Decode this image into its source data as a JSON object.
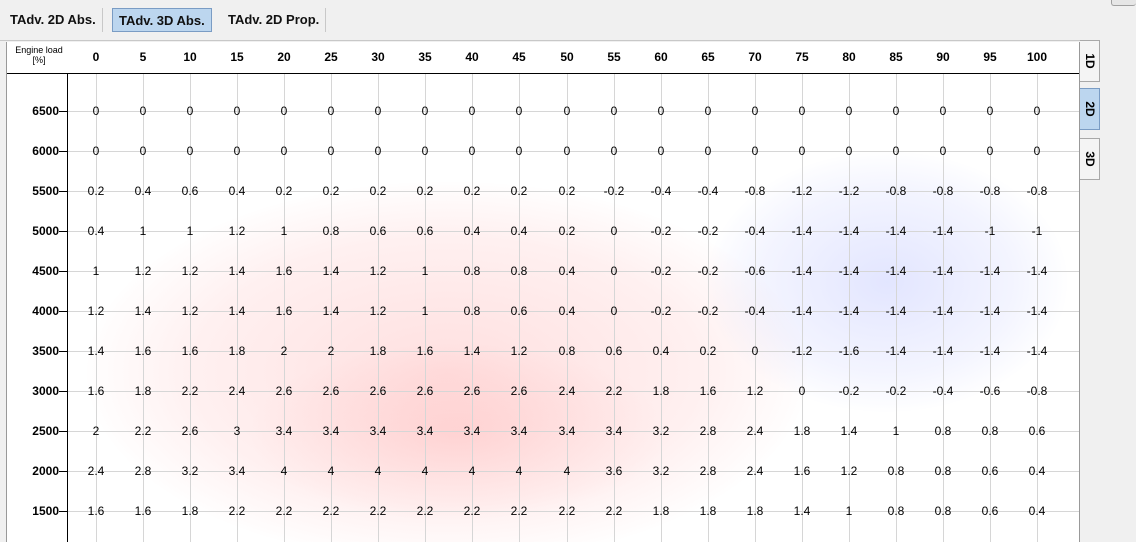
{
  "tabs": [
    {
      "label": "TAdv. 2D Abs.",
      "active": false
    },
    {
      "label": "TAdv. 3D Abs.",
      "active": true
    },
    {
      "label": "TAdv. 2D Prop.",
      "active": false
    }
  ],
  "side_tabs": [
    {
      "label": "1D",
      "active": false
    },
    {
      "label": "2D",
      "active": true
    },
    {
      "label": "3D",
      "active": false
    }
  ],
  "table": {
    "corner_label_line1": "Engine load",
    "corner_label_line2": "[%]",
    "columns": [
      "0",
      "5",
      "10",
      "15",
      "20",
      "25",
      "30",
      "35",
      "40",
      "45",
      "50",
      "55",
      "60",
      "65",
      "70",
      "75",
      "80",
      "85",
      "90",
      "95",
      "100"
    ],
    "rows": [
      {
        "label": "6500",
        "values": [
          "0",
          "0",
          "0",
          "0",
          "0",
          "0",
          "0",
          "0",
          "0",
          "0",
          "0",
          "0",
          "0",
          "0",
          "0",
          "0",
          "0",
          "0",
          "0",
          "0",
          "0"
        ]
      },
      {
        "label": "6000",
        "values": [
          "0",
          "0",
          "0",
          "0",
          "0",
          "0",
          "0",
          "0",
          "0",
          "0",
          "0",
          "0",
          "0",
          "0",
          "0",
          "0",
          "0",
          "0",
          "0",
          "0",
          "0"
        ]
      },
      {
        "label": "5500",
        "values": [
          "0.2",
          "0.4",
          "0.6",
          "0.4",
          "0.2",
          "0.2",
          "0.2",
          "0.2",
          "0.2",
          "0.2",
          "0.2",
          "-0.2",
          "-0.4",
          "-0.4",
          "-0.8",
          "-1.2",
          "-1.2",
          "-0.8",
          "-0.8",
          "-0.8",
          "-0.8"
        ]
      },
      {
        "label": "5000",
        "values": [
          "0.4",
          "1",
          "1",
          "1.2",
          "1",
          "0.8",
          "0.6",
          "0.6",
          "0.4",
          "0.4",
          "0.2",
          "0",
          "-0.2",
          "-0.2",
          "-0.4",
          "-1.4",
          "-1.4",
          "-1.4",
          "-1.4",
          "-1",
          "-1"
        ]
      },
      {
        "label": "4500",
        "values": [
          "1",
          "1.2",
          "1.2",
          "1.4",
          "1.6",
          "1.4",
          "1.2",
          "1",
          "0.8",
          "0.8",
          "0.4",
          "0",
          "-0.2",
          "-0.2",
          "-0.6",
          "-1.4",
          "-1.4",
          "-1.4",
          "-1.4",
          "-1.4",
          "-1.4"
        ]
      },
      {
        "label": "4000",
        "values": [
          "1.2",
          "1.4",
          "1.2",
          "1.4",
          "1.6",
          "1.4",
          "1.2",
          "1",
          "0.8",
          "0.6",
          "0.4",
          "0",
          "-0.2",
          "-0.2",
          "-0.4",
          "-1.4",
          "-1.4",
          "-1.4",
          "-1.4",
          "-1.4",
          "-1.4"
        ]
      },
      {
        "label": "3500",
        "values": [
          "1.4",
          "1.6",
          "1.6",
          "1.8",
          "2",
          "2",
          "1.8",
          "1.6",
          "1.4",
          "1.2",
          "0.8",
          "0.6",
          "0.4",
          "0.2",
          "0",
          "-1.2",
          "-1.6",
          "-1.4",
          "-1.4",
          "-1.4",
          "-1.4"
        ]
      },
      {
        "label": "3000",
        "values": [
          "1.6",
          "1.8",
          "2.2",
          "2.4",
          "2.6",
          "2.6",
          "2.6",
          "2.6",
          "2.6",
          "2.6",
          "2.4",
          "2.2",
          "1.8",
          "1.6",
          "1.2",
          "0",
          "-0.2",
          "-0.2",
          "-0.4",
          "-0.6",
          "-0.8"
        ]
      },
      {
        "label": "2500",
        "values": [
          "2",
          "2.2",
          "2.6",
          "3",
          "3.4",
          "3.4",
          "3.4",
          "3.4",
          "3.4",
          "3.4",
          "3.4",
          "3.4",
          "3.2",
          "2.8",
          "2.4",
          "1.8",
          "1.4",
          "1",
          "0.8",
          "0.8",
          "0.6"
        ]
      },
      {
        "label": "2000",
        "values": [
          "2.4",
          "2.8",
          "3.2",
          "3.4",
          "4",
          "4",
          "4",
          "4",
          "4",
          "4",
          "4",
          "3.6",
          "3.2",
          "2.8",
          "2.4",
          "1.6",
          "1.2",
          "0.8",
          "0.8",
          "0.6",
          "0.4"
        ]
      },
      {
        "label": "1500",
        "values": [
          "1.6",
          "1.6",
          "1.8",
          "2.2",
          "2.2",
          "2.2",
          "2.2",
          "2.2",
          "2.2",
          "2.2",
          "2.2",
          "2.2",
          "1.8",
          "1.8",
          "1.8",
          "1.4",
          "1",
          "0.8",
          "0.8",
          "0.6",
          "0.4"
        ]
      }
    ]
  },
  "colors": {
    "positive_tint": "#ff9a9a",
    "negative_tint": "#a8b4ff",
    "active_tab": "#bcd6ef"
  }
}
